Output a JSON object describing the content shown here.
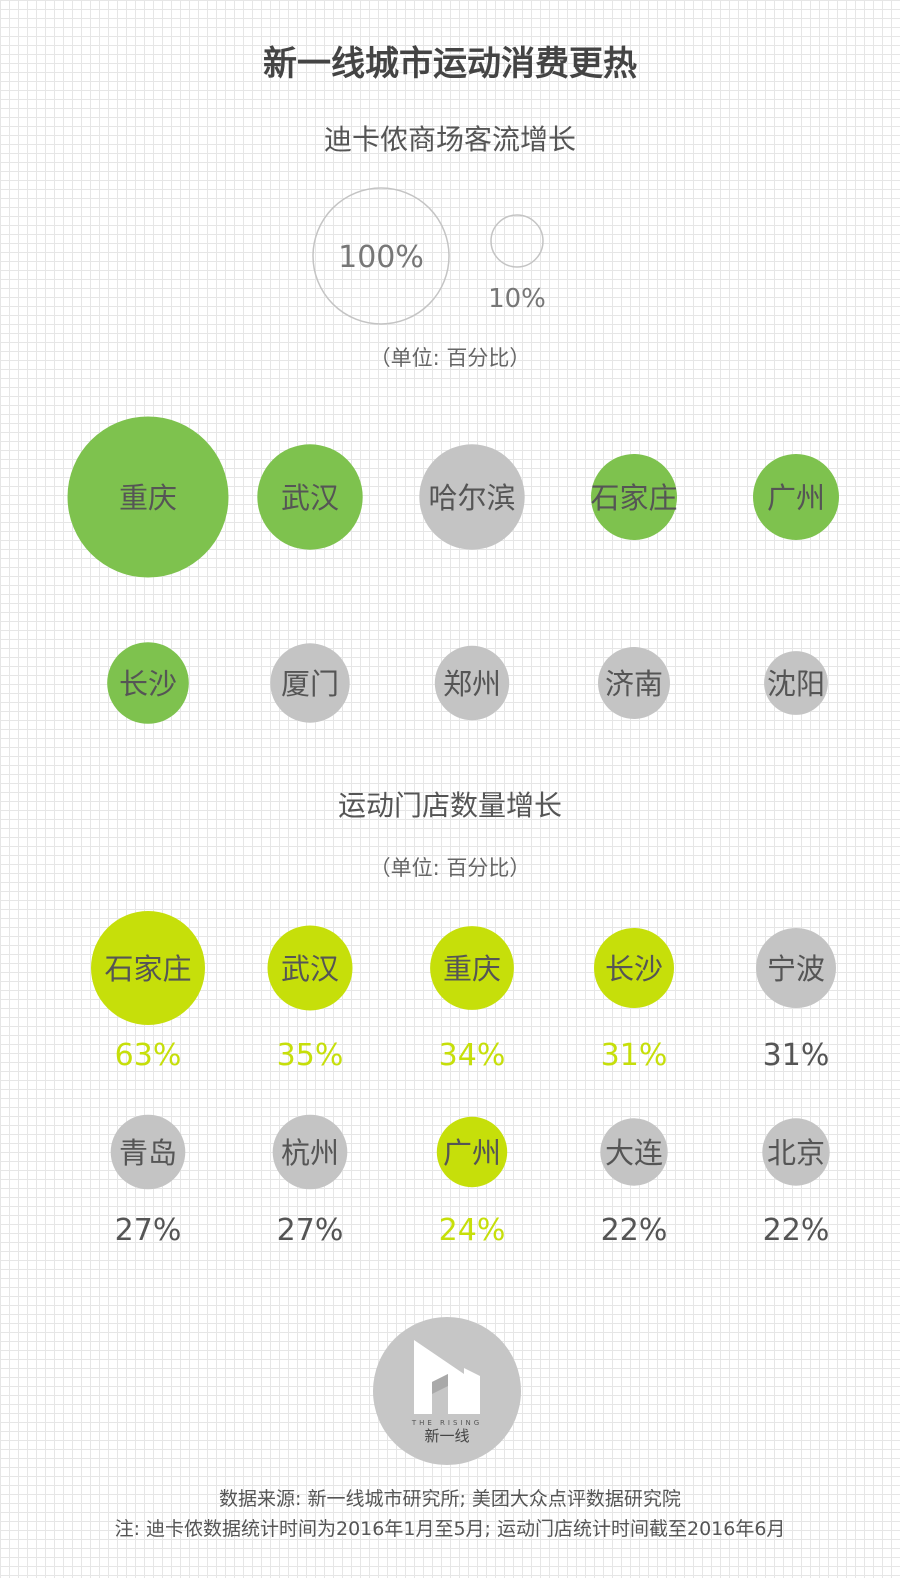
{
  "title": "新一线城市运动消费更热",
  "colors": {
    "green": "#7ec24e",
    "green_overlap": "#4a9a16",
    "gray": "#c4c4c4",
    "yellow_green": "#c6df0a",
    "dark_text": "#555555"
  },
  "chart_data": [
    {
      "type": "bubble",
      "title": "迪卡侬商场客流增长",
      "unit": "（单位: 百分比）",
      "legend": [
        {
          "label": "100%",
          "value": 100
        },
        {
          "label": "10%",
          "value": 10
        }
      ],
      "rows": [
        [
          {
            "city": "重庆",
            "value": 140,
            "highlight": true
          },
          {
            "city": "武汉",
            "value": 60,
            "highlight": true
          },
          {
            "city": "哈尔滨",
            "value": 60,
            "highlight": false
          },
          {
            "city": "石家庄",
            "value": 40,
            "highlight": true
          },
          {
            "city": "广州",
            "value": 40,
            "highlight": true
          }
        ],
        [
          {
            "city": "长沙",
            "value": 36,
            "highlight": true
          },
          {
            "city": "厦门",
            "value": 34,
            "highlight": false
          },
          {
            "city": "郑州",
            "value": 30,
            "highlight": false
          },
          {
            "city": "济南",
            "value": 28,
            "highlight": false
          },
          {
            "city": "沈阳",
            "value": 22,
            "highlight": false
          }
        ]
      ]
    },
    {
      "type": "bubble",
      "title": "运动门店数量增长",
      "unit": "（单位: 百分比）",
      "rows": [
        [
          {
            "city": "石家庄",
            "value": 63,
            "label": "63%",
            "highlight": true
          },
          {
            "city": "武汉",
            "value": 35,
            "label": "35%",
            "highlight": true
          },
          {
            "city": "重庆",
            "value": 34,
            "label": "34%",
            "highlight": true
          },
          {
            "city": "长沙",
            "value": 31,
            "label": "31%",
            "highlight": true
          },
          {
            "city": "宁波",
            "value": 31,
            "label": "31%",
            "highlight": false
          }
        ],
        [
          {
            "city": "青岛",
            "value": 27,
            "label": "27%",
            "highlight": false
          },
          {
            "city": "杭州",
            "value": 27,
            "label": "27%",
            "highlight": false
          },
          {
            "city": "广州",
            "value": 24,
            "label": "24%",
            "highlight": true
          },
          {
            "city": "大连",
            "value": 22,
            "label": "22%",
            "highlight": false
          },
          {
            "city": "北京",
            "value": 22,
            "label": "22%",
            "highlight": false
          }
        ]
      ]
    }
  ],
  "logo": {
    "icon": "building-play-icon",
    "tagline": "THE RISING",
    "name": "新一线"
  },
  "footer": {
    "source": "数据来源: 新一线城市研究所; 美团大众点评数据研究院",
    "note": "注: 迪卡侬数据统计时间为2016年1月至5月; 运动门店统计时间截至2016年6月"
  }
}
